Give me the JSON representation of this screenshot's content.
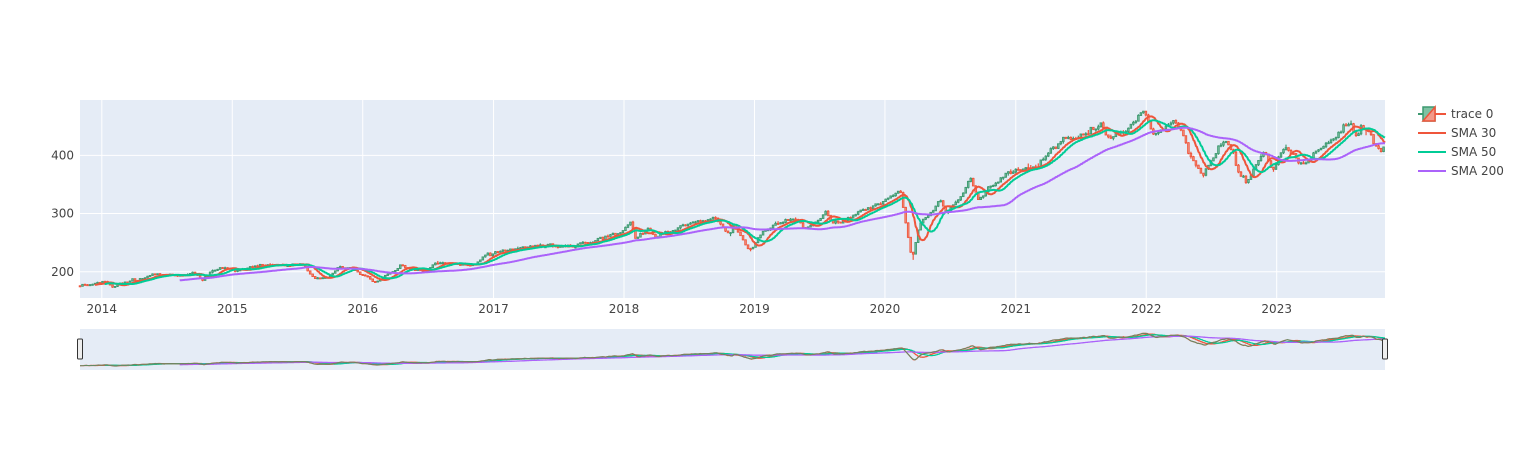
{
  "chart_data": {
    "type": "candlestick",
    "x_ticks": [
      "2014",
      "2015",
      "2016",
      "2017",
      "2018",
      "2019",
      "2020",
      "2021",
      "2022",
      "2023"
    ],
    "x_range": [
      "2013-11-01",
      "2023-10-31"
    ],
    "y_ticks": [
      200,
      300,
      400
    ],
    "y_range": [
      155,
      495
    ],
    "grid": true,
    "legend_placement": "top-right",
    "rangeslider": true,
    "colors": {
      "increasing": "#3D9970",
      "decreasing": "#EF553B",
      "sma30": "#EF553B",
      "sma50": "#00CC96",
      "sma200": "#AB63FA",
      "plot_bg": "#E5ECF6"
    },
    "close_anchors": [
      [
        "2013-11-01",
        176
      ],
      [
        "2014-01-15",
        183
      ],
      [
        "2014-02-05",
        175
      ],
      [
        "2014-04-01",
        186
      ],
      [
        "2014-07-15",
        197
      ],
      [
        "2014-08-05",
        192
      ],
      [
        "2014-09-20",
        200
      ],
      [
        "2014-10-15",
        187
      ],
      [
        "2014-12-01",
        206
      ],
      [
        "2015-01-15",
        201
      ],
      [
        "2015-03-01",
        210
      ],
      [
        "2015-05-20",
        212
      ],
      [
        "2015-07-20",
        212
      ],
      [
        "2015-08-25",
        189
      ],
      [
        "2015-09-28",
        190
      ],
      [
        "2015-11-03",
        210
      ],
      [
        "2015-12-15",
        203
      ],
      [
        "2016-02-11",
        182
      ],
      [
        "2016-04-20",
        209
      ],
      [
        "2016-06-27",
        200
      ],
      [
        "2016-08-15",
        218
      ],
      [
        "2016-11-04",
        208
      ],
      [
        "2016-12-13",
        227
      ],
      [
        "2017-03-01",
        239
      ],
      [
        "2017-06-15",
        244
      ],
      [
        "2017-09-01",
        247
      ],
      [
        "2017-12-31",
        267
      ],
      [
        "2018-01-26",
        286
      ],
      [
        "2018-02-08",
        258
      ],
      [
        "2018-03-15",
        276
      ],
      [
        "2018-04-05",
        260
      ],
      [
        "2018-06-15",
        278
      ],
      [
        "2018-09-20",
        293
      ],
      [
        "2018-10-29",
        264
      ],
      [
        "2018-11-07",
        281
      ],
      [
        "2018-12-24",
        235
      ],
      [
        "2019-01-31",
        270
      ],
      [
        "2019-04-30",
        294
      ],
      [
        "2019-06-03",
        274
      ],
      [
        "2019-07-26",
        302
      ],
      [
        "2019-08-15",
        284
      ],
      [
        "2019-10-15",
        298
      ],
      [
        "2019-12-31",
        322
      ],
      [
        "2020-02-19",
        337
      ],
      [
        "2020-03-23",
        222
      ],
      [
        "2020-04-15",
        284
      ],
      [
        "2020-06-08",
        320
      ],
      [
        "2020-06-26",
        301
      ],
      [
        "2020-09-02",
        357
      ],
      [
        "2020-09-23",
        323
      ],
      [
        "2020-11-09",
        354
      ],
      [
        "2020-12-31",
        373
      ],
      [
        "2021-03-04",
        378
      ],
      [
        "2021-05-07",
        421
      ],
      [
        "2021-07-30",
        440
      ],
      [
        "2021-09-02",
        453
      ],
      [
        "2021-10-04",
        428
      ],
      [
        "2022-01-03",
        477
      ],
      [
        "2022-01-27",
        430
      ],
      [
        "2022-03-29",
        461
      ],
      [
        "2022-05-20",
        389
      ],
      [
        "2022-06-16",
        366
      ],
      [
        "2022-08-16",
        429
      ],
      [
        "2022-09-30",
        357
      ],
      [
        "2022-10-12",
        349
      ],
      [
        "2022-11-30",
        407
      ],
      [
        "2022-12-28",
        376
      ],
      [
        "2023-02-02",
        416
      ],
      [
        "2023-03-13",
        385
      ],
      [
        "2023-05-15",
        412
      ],
      [
        "2023-07-31",
        457
      ],
      [
        "2023-08-18",
        436
      ],
      [
        "2023-09-01",
        451
      ],
      [
        "2023-10-27",
        410
      ],
      [
        "2023-10-31",
        418
      ]
    ],
    "legend": [
      {
        "name": "trace 0",
        "kind": "candle"
      },
      {
        "name": "SMA 30",
        "kind": "line"
      },
      {
        "name": "SMA 50",
        "kind": "line"
      },
      {
        "name": "SMA 200",
        "kind": "line"
      }
    ]
  }
}
